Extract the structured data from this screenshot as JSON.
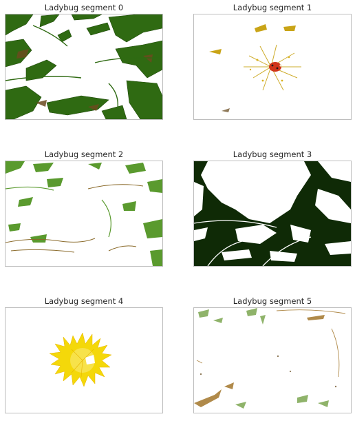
{
  "panels": [
    {
      "title": "Ladybug segment 0",
      "fill": "#2f6a12",
      "accent": "#6b4a1f",
      "content": "dark green leaf and stem fragments surrounding an empty center"
    },
    {
      "title": "Ladybug segment 1",
      "fill": "#c9a417",
      "accent": "#d0341a",
      "content": "red ladybug on sparse yellow flower fragments"
    },
    {
      "title": "Ladybug segment 2",
      "fill": "#5a9a2e",
      "accent": "#8a6a2a",
      "content": "lighter green leaf fragments"
    },
    {
      "title": "Ladybug segment 3",
      "fill": "#0f2a06",
      "accent": "#1c3a0c",
      "content": "very dark green shadow regions"
    },
    {
      "title": "Ladybug segment 4",
      "fill": "#f4d80a",
      "accent": "#e8b400",
      "content": "yellow dandelion flower head"
    },
    {
      "title": "Ladybug segment 5",
      "fill": "#8fb36a",
      "accent": "#b08a4a",
      "content": "sparse pale green and tan fragments"
    }
  ]
}
